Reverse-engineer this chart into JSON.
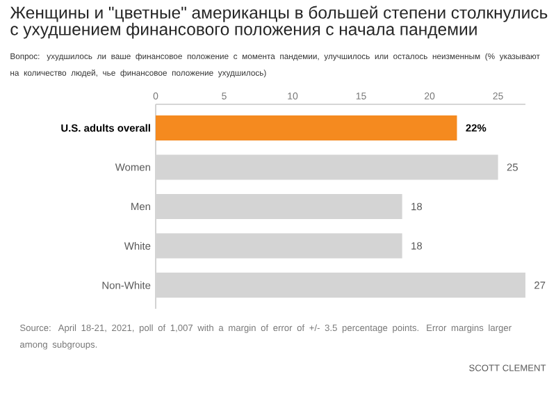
{
  "chart_data": {
    "type": "bar",
    "orientation": "horizontal",
    "title": "Женщины и \"цветные\" американцы в большей степени столкнулись с ухудшением финансового положения с начала пандемии",
    "subtitle": "Вопрос: ухудшилось ли ваше финансовое положение с момента пандемии, улучшилось или осталось неизменным (% указывают на количество людей, чье финансовое положение ухудшилось)",
    "categories": [
      "U.S. adults overall",
      "Women",
      "Men",
      "White",
      "Non-White"
    ],
    "values": [
      22,
      25,
      18,
      18,
      27
    ],
    "colors": [
      "#f58a1f",
      "#d4d4d4",
      "#d4d4d4",
      "#d4d4d4",
      "#d4d4d4"
    ],
    "value_labels": [
      "22%",
      "25",
      "18",
      "18",
      "27"
    ],
    "xlim": [
      0,
      27
    ],
    "xticks": [
      0,
      5,
      10,
      15,
      20,
      25
    ],
    "grid": false,
    "annotations": [
      "Source: April 18-21, 2021, poll of 1,007 with a margin of error of +/- 3.5 percentage points. Error margins larger among subgroups.",
      "SCOTT CLEMENT"
    ]
  }
}
